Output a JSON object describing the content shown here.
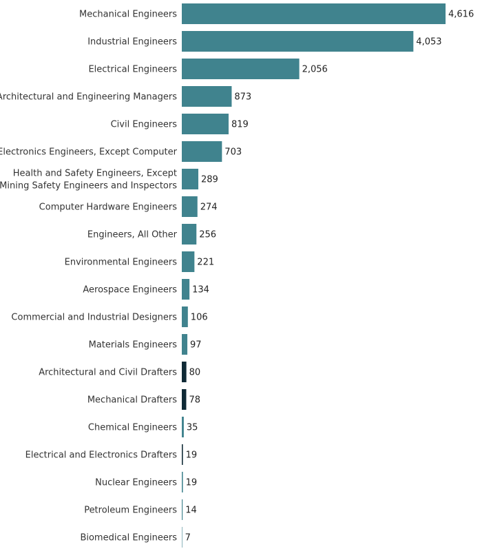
{
  "chart_data": {
    "type": "bar",
    "orientation": "horizontal",
    "title": "",
    "xlabel": "",
    "ylabel": "",
    "grid": false,
    "legend": "none",
    "categories": [
      "Mechanical Engineers",
      "Industrial Engineers",
      "Electrical Engineers",
      "Architectural and Engineering Managers",
      "Civil Engineers",
      "Electronics Engineers, Except Computer",
      "Health and Safety Engineers, Except Mining Safety Engineers and Inspectors",
      "Computer Hardware Engineers",
      "Engineers, All Other",
      "Environmental Engineers",
      "Aerospace Engineers",
      "Commercial and Industrial Designers",
      "Materials Engineers",
      "Architectural and Civil Drafters",
      "Mechanical Drafters",
      "Chemical Engineers",
      "Electrical and Electronics Drafters",
      "Nuclear Engineers",
      "Petroleum Engineers",
      "Biomedical Engineers"
    ],
    "category_lines": [
      [
        "Mechanical Engineers"
      ],
      [
        "Industrial Engineers"
      ],
      [
        "Electrical Engineers"
      ],
      [
        "Architectural and Engineering Managers"
      ],
      [
        "Civil Engineers"
      ],
      [
        "Electronics Engineers, Except Computer"
      ],
      [
        "Health and Safety Engineers, Except",
        "Mining Safety Engineers and Inspectors"
      ],
      [
        "Computer Hardware Engineers"
      ],
      [
        "Engineers, All Other"
      ],
      [
        "Environmental Engineers"
      ],
      [
        "Aerospace Engineers"
      ],
      [
        "Commercial and Industrial Designers"
      ],
      [
        "Materials Engineers"
      ],
      [
        "Architectural and Civil Drafters"
      ],
      [
        "Mechanical Drafters"
      ],
      [
        "Chemical Engineers"
      ],
      [
        "Electrical and Electronics Drafters"
      ],
      [
        "Nuclear Engineers"
      ],
      [
        "Petroleum Engineers"
      ],
      [
        "Biomedical Engineers"
      ]
    ],
    "values": [
      4616,
      4053,
      2056,
      873,
      819,
      703,
      289,
      274,
      256,
      221,
      134,
      106,
      97,
      80,
      78,
      35,
      19,
      19,
      14,
      7
    ],
    "value_labels": [
      "4,616",
      "4,053",
      "2,056",
      "873",
      "819",
      "703",
      "289",
      "274",
      "256",
      "221",
      "134",
      "106",
      "97",
      "80",
      "78",
      "35",
      "19",
      "19",
      "14",
      "7"
    ],
    "colors": [
      "#40838e",
      "#40838e",
      "#40838e",
      "#40838e",
      "#40838e",
      "#40838e",
      "#40838e",
      "#40838e",
      "#40838e",
      "#40838e",
      "#40838e",
      "#40838e",
      "#40838e",
      "#0f2a35",
      "#0f2a35",
      "#40838e",
      "#0f2a35",
      "#40838e",
      "#40838e",
      "#40838e"
    ],
    "xlim": [
      0,
      4616
    ]
  }
}
